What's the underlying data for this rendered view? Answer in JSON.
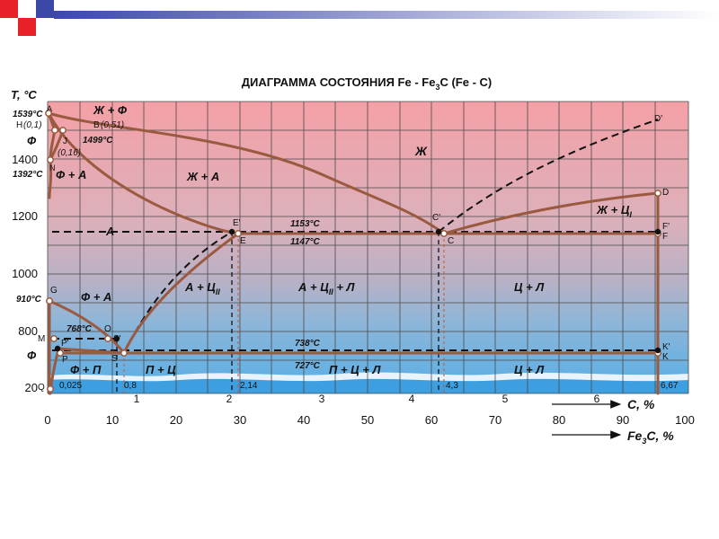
{
  "title": "ДИАГРАММА СОСТОЯНИЯ Fe - Fe",
  "title_sub": "3",
  "title_end": "C (Fe - C)",
  "colors": {
    "top_band": "#f4a0a6",
    "bottom_band": "#5ab0e8",
    "curve": "#9a5a40",
    "grid": "#4a4a4a",
    "deco_red": "#e8202a",
    "deco_blue": "#3b48a8"
  },
  "axes": {
    "y_label": "T, °C",
    "x_label": "C, %",
    "x2_label": "Fe",
    "x2_label_sub": "3",
    "x2_label_end": "C, %",
    "y_ticks": [
      "1400",
      "1200",
      "1000",
      "800",
      "20"
    ],
    "c_ticks": [
      "1",
      "2",
      "3",
      "4",
      "5",
      "6"
    ],
    "fe3c_ticks": [
      "0",
      "10",
      "20",
      "30",
      "40",
      "50",
      "60",
      "70",
      "80",
      "90",
      "100"
    ]
  },
  "temps": {
    "t1539": "1539°C",
    "t1499": "1499°C",
    "t1392": "1392°C",
    "t1153": "1153°C",
    "t1147": "1147°C",
    "t910": "910°C",
    "t768": "768°C",
    "t738": "738°C",
    "t727": "727°C"
  },
  "points": {
    "A": "A",
    "H": "H",
    "H_val": "(0,1)",
    "B": "B",
    "B_val": "(0,51)",
    "J": "J",
    "J_val": "(0,16)",
    "N": "N",
    "G": "G",
    "M": "M",
    "O": "O",
    "P1": "P'",
    "P": "P",
    "S1": "S'",
    "S": "S",
    "Q": "Q",
    "E1": "E'",
    "E": "E",
    "C1": "C'",
    "C": "C",
    "D1": "D'",
    "D": "D",
    "F1": "F'",
    "F": "F",
    "K1": "K'",
    "K": "K"
  },
  "concentrations": {
    "c0025": "0,025",
    "c08": "0,8",
    "c214": "2,14",
    "c43": "4,3",
    "c667": "6,67"
  },
  "phases": {
    "zh_f": "Ж + Ф",
    "f_top": "Ф",
    "f_a": "Ф + А",
    "zh_a": "Ж + А",
    "zh": "Ж",
    "a": "А",
    "zh_c": "Ж + Ц",
    "zh_c_sub": "I",
    "a_c": "А + Ц",
    "a_c_sub": "II",
    "a_c_l": "А + Ц",
    "a_c_l_sub": "II",
    "a_c_l_end": " + Л",
    "c_l_top": "Ц + Л",
    "f_a2": "Ф + А",
    "f_low": "Ф",
    "f_p": "Ф + П",
    "p_c": "П + Ц",
    "p_c_l": "П + Ц + Л",
    "c_l_bot": "Ц + Л"
  }
}
